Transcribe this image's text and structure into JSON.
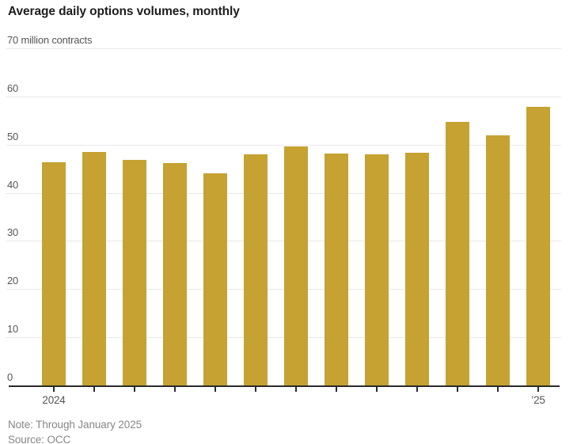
{
  "title": "Average daily options volumes, monthly",
  "note": "Note: Through January 2025",
  "source": "Source: OCC",
  "colors": {
    "bar": "#c5a232",
    "gridline": "#e9e9e9",
    "axis": "#2b2b2b",
    "title_text": "#1d1d1d",
    "axis_label_text": "#565656",
    "note_text": "#878787"
  },
  "chart_data": {
    "type": "bar",
    "title": "Average daily options volumes, monthly",
    "unit": "million contracts",
    "categories": [
      "2024-01",
      "2024-02",
      "2024-03",
      "2024-04",
      "2024-05",
      "2024-06",
      "2024-07",
      "2024-08",
      "2024-09",
      "2024-10",
      "2024-11",
      "2024-12",
      "2025-01"
    ],
    "values": [
      46.3,
      48.4,
      46.9,
      46.2,
      44.0,
      47.9,
      49.7,
      48.1,
      47.9,
      48.3,
      54.8,
      52.0,
      57.8
    ],
    "ylim": [
      0,
      70
    ],
    "yticks": [
      0,
      10,
      20,
      30,
      40,
      50,
      60,
      70
    ],
    "ytick_top_label": "70 million contracts",
    "xlabel": "",
    "ylabel": "million contracts",
    "visible_x_tick_labels": {
      "first": "2024",
      "last": "’25"
    },
    "grid": "horizontal",
    "legend": "none",
    "bar_color": "#c5a232"
  }
}
